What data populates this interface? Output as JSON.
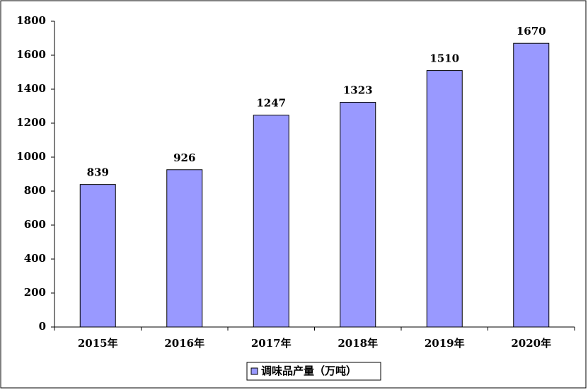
{
  "chart_data": {
    "type": "bar",
    "categories": [
      "2015年",
      "2016年",
      "2017年",
      "2018年",
      "2019年",
      "2020年"
    ],
    "series": [
      {
        "name": "调味品产量（万吨）",
        "color": "#9999ff",
        "values": [
          839,
          926,
          1247,
          1323,
          1510,
          1670
        ]
      }
    ],
    "ylim": [
      0,
      1800
    ],
    "yticks": [
      0,
      200,
      400,
      600,
      800,
      1000,
      1200,
      1400,
      1600,
      1800
    ],
    "grid": false,
    "legend": "bottom"
  }
}
